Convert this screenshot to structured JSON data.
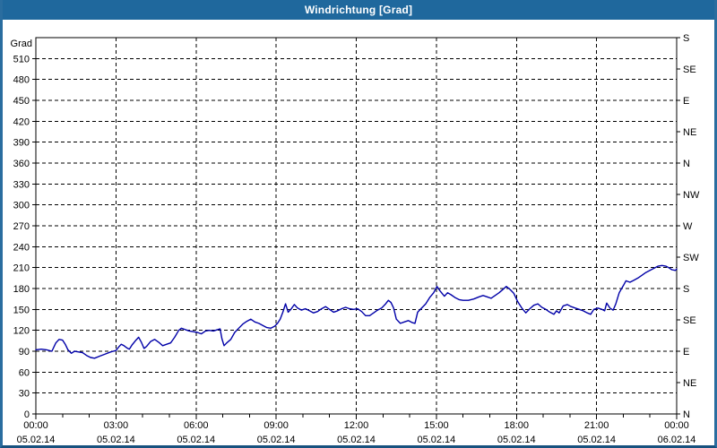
{
  "window": {
    "title": "Windrichtung [Grad]"
  },
  "colors": {
    "titlebar": "#1f689d",
    "border_side": "#2a6d9f",
    "border_bottom": "#17517e",
    "plot_background": "#ffffff",
    "frame": "#000000",
    "grid": "#000000",
    "line": "#0000a8"
  },
  "chart_data": {
    "type": "line",
    "title": "Windrichtung [Grad]",
    "grid": {
      "style": "dashed",
      "color": "#000000"
    },
    "x_axis": {
      "range_hours": [
        0,
        24
      ],
      "major_tick_hours": 3,
      "minor_tick_hours": 1,
      "ticks": [
        {
          "hour": 0,
          "time": "00:00",
          "date": "05.02.14"
        },
        {
          "hour": 3,
          "time": "03:00",
          "date": "05.02.14"
        },
        {
          "hour": 6,
          "time": "06:00",
          "date": "05.02.14"
        },
        {
          "hour": 9,
          "time": "09:00",
          "date": "05.02.14"
        },
        {
          "hour": 12,
          "time": "12:00",
          "date": "05.02.14"
        },
        {
          "hour": 15,
          "time": "15:00",
          "date": "05.02.14"
        },
        {
          "hour": 18,
          "time": "18:00",
          "date": "05.02.14"
        },
        {
          "hour": 21,
          "time": "21:00",
          "date": "05.02.14"
        },
        {
          "hour": 24,
          "time": "00:00",
          "date": "06.02.14"
        }
      ]
    },
    "y_axis_left": {
      "label": "Grad",
      "range": [
        0,
        540
      ],
      "tick_step": 30,
      "tick_values": [
        0,
        30,
        60,
        90,
        120,
        150,
        180,
        210,
        240,
        270,
        300,
        330,
        360,
        390,
        420,
        450,
        480,
        510
      ]
    },
    "y_axis_right": {
      "ticks": [
        {
          "deg": 0,
          "label": "N"
        },
        {
          "deg": 45,
          "label": "NE"
        },
        {
          "deg": 90,
          "label": "E"
        },
        {
          "deg": 135,
          "label": "SE"
        },
        {
          "deg": 180,
          "label": "S"
        },
        {
          "deg": 225,
          "label": "SW"
        },
        {
          "deg": 270,
          "label": "W"
        },
        {
          "deg": 315,
          "label": "NW"
        },
        {
          "deg": 360,
          "label": "N"
        },
        {
          "deg": 405,
          "label": "NE"
        },
        {
          "deg": 450,
          "label": "E"
        },
        {
          "deg": 495,
          "label": "SE"
        },
        {
          "deg": 540,
          "label": "S"
        }
      ]
    },
    "series": [
      {
        "name": "Windrichtung",
        "color": "#0000a8",
        "points": [
          [
            0,
            92
          ],
          [
            0.2,
            93
          ],
          [
            0.4,
            92
          ],
          [
            0.6,
            90
          ],
          [
            0.75,
            102
          ],
          [
            0.87,
            107
          ],
          [
            1,
            106
          ],
          [
            1.1,
            100
          ],
          [
            1.2,
            92
          ],
          [
            1.33,
            87
          ],
          [
            1.45,
            90
          ],
          [
            1.6,
            89
          ],
          [
            1.75,
            88
          ],
          [
            1.9,
            84
          ],
          [
            2.05,
            81
          ],
          [
            2.2,
            80
          ],
          [
            2.4,
            83
          ],
          [
            2.6,
            86
          ],
          [
            2.8,
            89
          ],
          [
            3,
            91
          ],
          [
            3.1,
            96
          ],
          [
            3.2,
            100
          ],
          [
            3.3,
            98
          ],
          [
            3.4,
            95
          ],
          [
            3.5,
            93
          ],
          [
            3.6,
            99
          ],
          [
            3.75,
            106
          ],
          [
            3.85,
            110
          ],
          [
            3.95,
            103
          ],
          [
            4.05,
            94
          ],
          [
            4.15,
            97
          ],
          [
            4.3,
            104
          ],
          [
            4.45,
            107
          ],
          [
            4.6,
            103
          ],
          [
            4.75,
            98
          ],
          [
            4.9,
            100
          ],
          [
            5.05,
            102
          ],
          [
            5.2,
            110
          ],
          [
            5.35,
            120
          ],
          [
            5.45,
            123
          ],
          [
            5.6,
            121
          ],
          [
            5.75,
            119
          ],
          [
            5.9,
            118
          ],
          [
            6.05,
            117
          ],
          [
            6.2,
            115
          ],
          [
            6.35,
            119
          ],
          [
            6.5,
            120
          ],
          [
            6.65,
            119
          ],
          [
            6.8,
            121
          ],
          [
            6.9,
            122
          ],
          [
            6.97,
            108
          ],
          [
            7.05,
            98
          ],
          [
            7.15,
            102
          ],
          [
            7.3,
            107
          ],
          [
            7.45,
            117
          ],
          [
            7.6,
            123
          ],
          [
            7.75,
            129
          ],
          [
            7.9,
            133
          ],
          [
            8.05,
            136
          ],
          [
            8.2,
            132
          ],
          [
            8.35,
            130
          ],
          [
            8.5,
            127
          ],
          [
            8.65,
            124
          ],
          [
            8.8,
            123
          ],
          [
            8.95,
            126
          ],
          [
            9.05,
            130
          ],
          [
            9.15,
            136
          ],
          [
            9.25,
            146
          ],
          [
            9.35,
            158
          ],
          [
            9.45,
            146
          ],
          [
            9.55,
            150
          ],
          [
            9.68,
            157
          ],
          [
            9.8,
            152
          ],
          [
            9.95,
            149
          ],
          [
            10.1,
            151
          ],
          [
            10.25,
            148
          ],
          [
            10.4,
            145
          ],
          [
            10.55,
            147
          ],
          [
            10.7,
            151
          ],
          [
            10.85,
            154
          ],
          [
            11,
            150
          ],
          [
            11.15,
            146
          ],
          [
            11.3,
            148
          ],
          [
            11.45,
            151
          ],
          [
            11.6,
            153
          ],
          [
            11.75,
            151
          ],
          [
            11.9,
            150
          ],
          [
            12.05,
            151
          ],
          [
            12.2,
            147
          ],
          [
            12.35,
            141
          ],
          [
            12.5,
            141
          ],
          [
            12.65,
            145
          ],
          [
            12.8,
            149
          ],
          [
            12.95,
            152
          ],
          [
            13.1,
            158
          ],
          [
            13.2,
            163
          ],
          [
            13.3,
            160
          ],
          [
            13.4,
            152
          ],
          [
            13.5,
            136
          ],
          [
            13.65,
            130
          ],
          [
            13.8,
            132
          ],
          [
            13.95,
            134
          ],
          [
            14.1,
            131
          ],
          [
            14.2,
            130
          ],
          [
            14.3,
            146
          ],
          [
            14.45,
            152
          ],
          [
            14.6,
            158
          ],
          [
            14.75,
            167
          ],
          [
            14.9,
            174
          ],
          [
            15.02,
            183
          ],
          [
            15.15,
            176
          ],
          [
            15.3,
            169
          ],
          [
            15.42,
            174
          ],
          [
            15.55,
            171
          ],
          [
            15.7,
            167
          ],
          [
            15.85,
            164
          ],
          [
            16,
            163
          ],
          [
            16.2,
            163
          ],
          [
            16.4,
            165
          ],
          [
            16.6,
            168
          ],
          [
            16.75,
            170
          ],
          [
            16.9,
            168
          ],
          [
            17.05,
            166
          ],
          [
            17.2,
            170
          ],
          [
            17.35,
            174
          ],
          [
            17.5,
            179
          ],
          [
            17.62,
            183
          ],
          [
            17.75,
            179
          ],
          [
            17.9,
            173
          ],
          [
            18.05,
            161
          ],
          [
            18.2,
            152
          ],
          [
            18.35,
            145
          ],
          [
            18.5,
            151
          ],
          [
            18.65,
            156
          ],
          [
            18.8,
            158
          ],
          [
            18.95,
            153
          ],
          [
            19.1,
            150
          ],
          [
            19.25,
            146
          ],
          [
            19.4,
            143
          ],
          [
            19.5,
            148
          ],
          [
            19.6,
            145
          ],
          [
            19.75,
            155
          ],
          [
            19.9,
            157
          ],
          [
            20.05,
            154
          ],
          [
            20.2,
            152
          ],
          [
            20.35,
            150
          ],
          [
            20.5,
            148
          ],
          [
            20.65,
            145
          ],
          [
            20.78,
            143
          ],
          [
            20.9,
            150
          ],
          [
            21.05,
            152
          ],
          [
            21.2,
            150
          ],
          [
            21.3,
            148
          ],
          [
            21.38,
            159
          ],
          [
            21.5,
            152
          ],
          [
            21.62,
            149
          ],
          [
            21.72,
            158
          ],
          [
            21.85,
            174
          ],
          [
            22,
            184
          ],
          [
            22.1,
            191
          ],
          [
            22.25,
            189
          ],
          [
            22.4,
            192
          ],
          [
            22.55,
            195
          ],
          [
            22.7,
            199
          ],
          [
            22.85,
            203
          ],
          [
            23,
            206
          ],
          [
            23.15,
            209
          ],
          [
            23.3,
            212
          ],
          [
            23.45,
            213
          ],
          [
            23.6,
            212
          ],
          [
            23.7,
            210
          ],
          [
            23.82,
            207
          ],
          [
            23.95,
            206
          ],
          [
            24,
            208
          ]
        ]
      }
    ]
  }
}
